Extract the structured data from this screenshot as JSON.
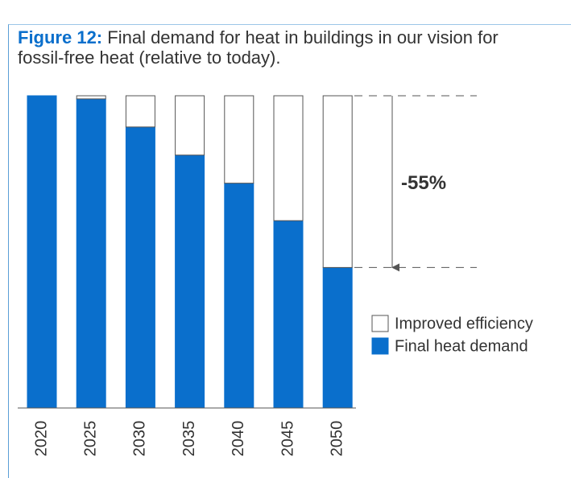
{
  "chart_data": {
    "type": "stacked_bar",
    "title_label": "Figure 12:",
    "title": "Final demand for heat in buildings in our vision for fossil-free heat (relative to today).",
    "categories": [
      "2020",
      "2025",
      "2030",
      "2035",
      "2040",
      "2045",
      "2050"
    ],
    "series": [
      {
        "name": "Final heat demand",
        "color": "#0a6fcc",
        "values": [
          100,
          99,
          90,
          81,
          72,
          60,
          45
        ]
      },
      {
        "name": "Improved efficiency",
        "color": "#ffffff",
        "values": [
          0,
          1,
          10,
          19,
          28,
          40,
          55
        ]
      }
    ],
    "ylim": [
      0,
      100
    ],
    "annotation": "-55%"
  }
}
